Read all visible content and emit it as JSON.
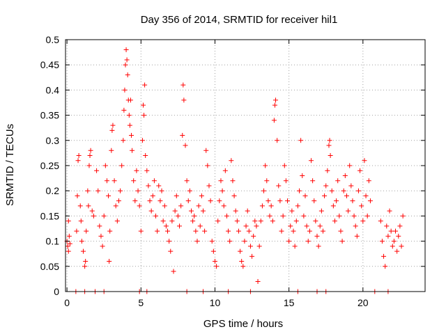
{
  "chart_data": {
    "type": "scatter",
    "title": "Day 356 of 2014, SRMTID for receiver hil1",
    "xlabel": "GPS time / hours",
    "ylabel": "SRMTID / TECUs",
    "xlim": [
      -0.1,
      24.2
    ],
    "ylim": [
      0,
      0.5
    ],
    "xticks": [
      0,
      5,
      10,
      15,
      20
    ],
    "xtick_labels": [
      "0",
      "5",
      "10",
      "15",
      "20"
    ],
    "yticks": [
      0,
      0.05,
      0.1,
      0.15,
      0.2,
      0.25,
      0.3,
      0.35,
      0.4,
      0.45,
      0.5
    ],
    "ytick_labels": [
      "0",
      "0.05",
      "0.1",
      "0.15",
      "0.2",
      "0.25",
      "0.3",
      "0.35",
      "0.4",
      "0.45",
      "0.5"
    ],
    "grid": true,
    "marker": "+",
    "color": "#ff0000",
    "series": [
      {
        "name": "SRMTID",
        "points": [
          [
            0.0,
            0.1
          ],
          [
            0.05,
            0.09
          ],
          [
            0.1,
            0.08
          ],
          [
            0.1,
            0.14
          ],
          [
            0.15,
            0.11
          ],
          [
            0.2,
            0.095
          ],
          [
            0.65,
            0.12
          ],
          [
            0.7,
            0.19
          ],
          [
            0.75,
            0.26
          ],
          [
            0.8,
            0.27
          ],
          [
            0.9,
            0.17
          ],
          [
            0.95,
            0.14
          ],
          [
            1.0,
            0.1
          ],
          [
            1.1,
            0.08
          ],
          [
            1.2,
            0.05
          ],
          [
            1.25,
            0.06
          ],
          [
            1.3,
            0.12
          ],
          [
            1.4,
            0.2
          ],
          [
            1.45,
            0.17
          ],
          [
            1.5,
            0.25
          ],
          [
            1.55,
            0.27
          ],
          [
            1.6,
            0.28
          ],
          [
            1.7,
            0.16
          ],
          [
            1.8,
            0.15
          ],
          [
            2.0,
            0.24
          ],
          [
            2.1,
            0.2
          ],
          [
            2.2,
            0.13
          ],
          [
            2.3,
            0.11
          ],
          [
            2.4,
            0.09
          ],
          [
            2.5,
            0.15
          ],
          [
            2.6,
            0.25
          ],
          [
            2.7,
            0.22
          ],
          [
            2.8,
            0.19
          ],
          [
            2.85,
            0.06
          ],
          [
            2.9,
            0.12
          ],
          [
            3.0,
            0.28
          ],
          [
            3.05,
            0.32
          ],
          [
            3.1,
            0.33
          ],
          [
            3.2,
            0.22
          ],
          [
            3.3,
            0.17
          ],
          [
            3.4,
            0.14
          ],
          [
            3.5,
            0.18
          ],
          [
            3.6,
            0.2
          ],
          [
            3.7,
            0.25
          ],
          [
            3.8,
            0.3
          ],
          [
            3.85,
            0.36
          ],
          [
            3.9,
            0.4
          ],
          [
            3.95,
            0.45
          ],
          [
            4.0,
            0.48
          ],
          [
            4.05,
            0.46
          ],
          [
            4.1,
            0.43
          ],
          [
            4.15,
            0.38
          ],
          [
            4.2,
            0.35
          ],
          [
            4.25,
            0.33
          ],
          [
            4.3,
            0.38
          ],
          [
            4.35,
            0.31
          ],
          [
            4.4,
            0.28
          ],
          [
            4.5,
            0.22
          ],
          [
            4.6,
            0.18
          ],
          [
            4.7,
            0.24
          ],
          [
            4.8,
            0.2
          ],
          [
            4.9,
            0.17
          ],
          [
            5.0,
            0.12
          ],
          [
            5.1,
            0.3
          ],
          [
            5.15,
            0.37
          ],
          [
            5.2,
            0.35
          ],
          [
            5.25,
            0.41
          ],
          [
            5.3,
            0.27
          ],
          [
            5.4,
            0.24
          ],
          [
            5.5,
            0.21
          ],
          [
            5.6,
            0.18
          ],
          [
            5.7,
            0.16
          ],
          [
            5.8,
            0.19
          ],
          [
            5.9,
            0.22
          ],
          [
            6.0,
            0.15
          ],
          [
            6.1,
            0.12
          ],
          [
            6.2,
            0.21
          ],
          [
            6.3,
            0.18
          ],
          [
            6.4,
            0.2
          ],
          [
            6.5,
            0.14
          ],
          [
            6.6,
            0.17
          ],
          [
            6.7,
            0.13
          ],
          [
            6.8,
            0.12
          ],
          [
            6.9,
            0.1
          ],
          [
            7.0,
            0.08
          ],
          [
            7.1,
            0.14
          ],
          [
            7.2,
            0.04
          ],
          [
            7.3,
            0.16
          ],
          [
            7.4,
            0.19
          ],
          [
            7.5,
            0.15
          ],
          [
            7.6,
            0.13
          ],
          [
            7.7,
            0.17
          ],
          [
            7.8,
            0.31
          ],
          [
            7.85,
            0.41
          ],
          [
            7.9,
            0.38
          ],
          [
            8.0,
            0.29
          ],
          [
            8.1,
            0.22
          ],
          [
            8.2,
            0.18
          ],
          [
            8.3,
            0.2
          ],
          [
            8.4,
            0.16
          ],
          [
            8.5,
            0.14
          ],
          [
            8.6,
            0.15
          ],
          [
            8.7,
            0.12
          ],
          [
            8.8,
            0.1
          ],
          [
            8.9,
            0.17
          ],
          [
            9.0,
            0.13
          ],
          [
            9.1,
            0.19
          ],
          [
            9.2,
            0.16
          ],
          [
            9.3,
            0.12
          ],
          [
            9.4,
            0.28
          ],
          [
            9.5,
            0.25
          ],
          [
            9.6,
            0.21
          ],
          [
            9.7,
            0.18
          ],
          [
            9.8,
            0.1
          ],
          [
            9.9,
            0.08
          ],
          [
            10.0,
            0.06
          ],
          [
            10.1,
            0.05
          ],
          [
            10.2,
            0.14
          ],
          [
            10.3,
            0.18
          ],
          [
            10.4,
            0.22
          ],
          [
            10.5,
            0.2
          ],
          [
            10.6,
            0.17
          ],
          [
            10.7,
            0.24
          ],
          [
            10.8,
            0.15
          ],
          [
            10.9,
            0.12
          ],
          [
            11.0,
            0.1
          ],
          [
            11.1,
            0.26
          ],
          [
            11.2,
            0.22
          ],
          [
            11.3,
            0.19
          ],
          [
            11.4,
            0.16
          ],
          [
            11.5,
            0.14
          ],
          [
            11.6,
            0.12
          ],
          [
            11.7,
            0.08
          ],
          [
            11.8,
            0.06
          ],
          [
            11.9,
            0.05
          ],
          [
            12.0,
            0.1
          ],
          [
            12.1,
            0.13
          ],
          [
            12.2,
            0.16
          ],
          [
            12.3,
            0.12
          ],
          [
            12.4,
            0.09
          ],
          [
            12.5,
            0.07
          ],
          [
            12.6,
            0.11
          ],
          [
            12.7,
            0.14
          ],
          [
            12.8,
            0.13
          ],
          [
            12.9,
            0.02
          ],
          [
            13.0,
            0.09
          ],
          [
            13.1,
            0.14
          ],
          [
            13.2,
            0.17
          ],
          [
            13.3,
            0.2
          ],
          [
            13.4,
            0.25
          ],
          [
            13.5,
            0.22
          ],
          [
            13.6,
            0.18
          ],
          [
            13.7,
            0.15
          ],
          [
            13.8,
            0.17
          ],
          [
            13.9,
            0.14
          ],
          [
            14.0,
            0.34
          ],
          [
            14.05,
            0.37
          ],
          [
            14.1,
            0.38
          ],
          [
            14.2,
            0.3
          ],
          [
            14.3,
            0.21
          ],
          [
            14.4,
            0.18
          ],
          [
            14.5,
            0.12
          ],
          [
            14.6,
            0.15
          ],
          [
            14.7,
            0.25
          ],
          [
            14.8,
            0.22
          ],
          [
            14.9,
            0.18
          ],
          [
            15.0,
            0.1
          ],
          [
            15.1,
            0.13
          ],
          [
            15.2,
            0.16
          ],
          [
            15.3,
            0.12
          ],
          [
            15.4,
            0.09
          ],
          [
            15.5,
            0.14
          ],
          [
            15.6,
            0.17
          ],
          [
            15.7,
            0.2
          ],
          [
            15.8,
            0.3
          ],
          [
            15.9,
            0.23
          ],
          [
            16.0,
            0.15
          ],
          [
            16.1,
            0.19
          ],
          [
            16.2,
            0.13
          ],
          [
            16.3,
            0.1
          ],
          [
            16.4,
            0.12
          ],
          [
            16.5,
            0.26
          ],
          [
            16.6,
            0.22
          ],
          [
            16.7,
            0.18
          ],
          [
            16.8,
            0.14
          ],
          [
            16.9,
            0.11
          ],
          [
            17.0,
            0.09
          ],
          [
            17.1,
            0.13
          ],
          [
            17.2,
            0.16
          ],
          [
            17.3,
            0.12
          ],
          [
            17.4,
            0.19
          ],
          [
            17.5,
            0.21
          ],
          [
            17.6,
            0.24
          ],
          [
            17.7,
            0.29
          ],
          [
            17.75,
            0.3
          ],
          [
            17.8,
            0.27
          ],
          [
            17.9,
            0.2
          ],
          [
            18.0,
            0.17
          ],
          [
            18.1,
            0.14
          ],
          [
            18.2,
            0.18
          ],
          [
            18.3,
            0.22
          ],
          [
            18.4,
            0.15
          ],
          [
            18.5,
            0.12
          ],
          [
            18.6,
            0.1
          ],
          [
            18.7,
            0.2
          ],
          [
            18.8,
            0.23
          ],
          [
            18.9,
            0.19
          ],
          [
            19.0,
            0.16
          ],
          [
            19.1,
            0.25
          ],
          [
            19.2,
            0.21
          ],
          [
            19.3,
            0.18
          ],
          [
            19.4,
            0.15
          ],
          [
            19.5,
            0.13
          ],
          [
            19.6,
            0.11
          ],
          [
            19.7,
            0.2
          ],
          [
            19.8,
            0.24
          ],
          [
            19.9,
            0.17
          ],
          [
            20.0,
            0.14
          ],
          [
            20.1,
            0.26
          ],
          [
            20.2,
            0.19
          ],
          [
            20.3,
            0.15
          ],
          [
            20.4,
            0.22
          ],
          [
            20.5,
            0.18
          ],
          [
            21.2,
            0.14
          ],
          [
            21.3,
            0.1
          ],
          [
            21.4,
            0.07
          ],
          [
            21.5,
            0.05
          ],
          [
            21.6,
            0.13
          ],
          [
            21.7,
            0.11
          ],
          [
            21.8,
            0.16
          ],
          [
            21.9,
            0.12
          ],
          [
            22.0,
            0.09
          ],
          [
            22.1,
            0.1
          ],
          [
            22.2,
            0.12
          ],
          [
            22.3,
            0.08
          ],
          [
            22.4,
            0.11
          ],
          [
            22.5,
            0.13
          ],
          [
            22.6,
            0.09
          ],
          [
            22.7,
            0.15
          ],
          [
            0.6,
            0.0
          ],
          [
            1.2,
            0.0
          ],
          [
            1.9,
            0.0
          ],
          [
            2.5,
            0.0
          ],
          [
            4.9,
            0.0
          ],
          [
            5.4,
            0.0
          ],
          [
            8.1,
            0.0
          ],
          [
            9.2,
            0.0
          ],
          [
            10.9,
            0.0
          ],
          [
            12.4,
            0.0
          ],
          [
            15.6,
            0.0
          ],
          [
            16.9,
            0.0
          ],
          [
            17.5,
            0.0
          ],
          [
            20.8,
            0.0
          ],
          [
            21.7,
            0.0
          ]
        ]
      }
    ]
  }
}
